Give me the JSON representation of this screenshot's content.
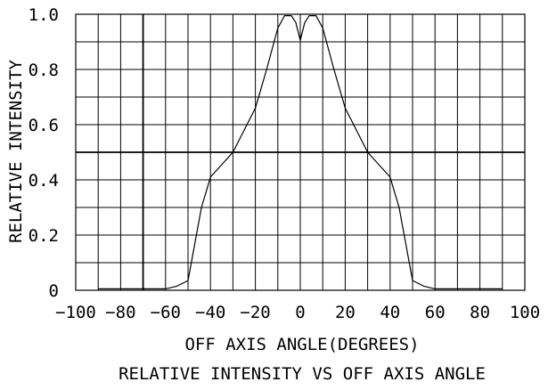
{
  "chart_data": {
    "type": "line",
    "title": "RELATIVE INTENSITY VS OFF AXIS ANGLE",
    "xlabel": "OFF AXIS ANGLE(DEGREES)",
    "ylabel": "RELATIVE INTENSITY",
    "xlim": [
      -100,
      100
    ],
    "ylim": [
      0,
      1.0
    ],
    "x_ticks": [
      "−100",
      "−80",
      "−60",
      "−40",
      "−20",
      "0",
      "20",
      "40",
      "60",
      "80",
      "100"
    ],
    "y_ticks": [
      "0",
      "0.2",
      "0.4",
      "0.6",
      "0.8",
      "1.0"
    ],
    "grid": true,
    "series": [
      {
        "points": [
          [
            -90,
            0.005
          ],
          [
            -70,
            0.005
          ],
          [
            -60,
            0.005
          ],
          [
            -55,
            0.015
          ],
          [
            -50,
            0.035
          ],
          [
            -44,
            0.3
          ],
          [
            -40,
            0.41
          ],
          [
            -30,
            0.5
          ],
          [
            -20,
            0.66
          ],
          [
            -15,
            0.8
          ],
          [
            -10,
            0.95
          ],
          [
            -7,
            0.995
          ],
          [
            -4,
            0.995
          ],
          [
            -2,
            0.97
          ],
          [
            0,
            0.905
          ],
          [
            2,
            0.97
          ],
          [
            4,
            0.995
          ],
          [
            7,
            0.995
          ],
          [
            10,
            0.95
          ],
          [
            15,
            0.8
          ],
          [
            20,
            0.66
          ],
          [
            30,
            0.5
          ],
          [
            40,
            0.41
          ],
          [
            44,
            0.3
          ],
          [
            50,
            0.035
          ],
          [
            55,
            0.015
          ],
          [
            60,
            0.005
          ],
          [
            70,
            0.005
          ],
          [
            90,
            0.005
          ]
        ]
      }
    ],
    "colors": {
      "line": "#000000",
      "grid": "#000000",
      "background": "#ffffff"
    }
  }
}
